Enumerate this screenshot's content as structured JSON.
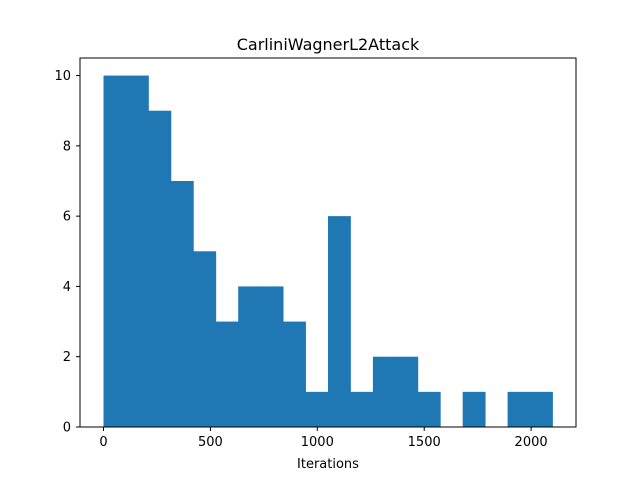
{
  "chart_data": {
    "type": "bar",
    "subtype": "histogram",
    "title": "CarliniWagnerL2Attack",
    "xlabel": "Iterations",
    "ylabel": "",
    "xlim": [
      -110,
      2210
    ],
    "ylim": [
      0,
      10.5
    ],
    "xticks": [
      0,
      500,
      1000,
      1500,
      2000
    ],
    "yticks": [
      0,
      2,
      4,
      6,
      8,
      10
    ],
    "grid": false,
    "color": "#1f77b4",
    "bin_width": 105,
    "bins": [
      {
        "start": 0,
        "end": 105,
        "count": 10
      },
      {
        "start": 105,
        "end": 210,
        "count": 10
      },
      {
        "start": 210,
        "end": 315,
        "count": 9
      },
      {
        "start": 315,
        "end": 420,
        "count": 7
      },
      {
        "start": 420,
        "end": 525,
        "count": 5
      },
      {
        "start": 525,
        "end": 630,
        "count": 3
      },
      {
        "start": 630,
        "end": 735,
        "count": 4
      },
      {
        "start": 735,
        "end": 840,
        "count": 4
      },
      {
        "start": 840,
        "end": 945,
        "count": 3
      },
      {
        "start": 945,
        "end": 1050,
        "count": 1
      },
      {
        "start": 1050,
        "end": 1155,
        "count": 6
      },
      {
        "start": 1155,
        "end": 1260,
        "count": 1
      },
      {
        "start": 1260,
        "end": 1365,
        "count": 2
      },
      {
        "start": 1365,
        "end": 1470,
        "count": 2
      },
      {
        "start": 1470,
        "end": 1575,
        "count": 1
      },
      {
        "start": 1575,
        "end": 1680,
        "count": 0
      },
      {
        "start": 1680,
        "end": 1785,
        "count": 1
      },
      {
        "start": 1785,
        "end": 1890,
        "count": 0
      },
      {
        "start": 1890,
        "end": 1995,
        "count": 1
      },
      {
        "start": 1995,
        "end": 2100,
        "count": 1
      }
    ]
  }
}
